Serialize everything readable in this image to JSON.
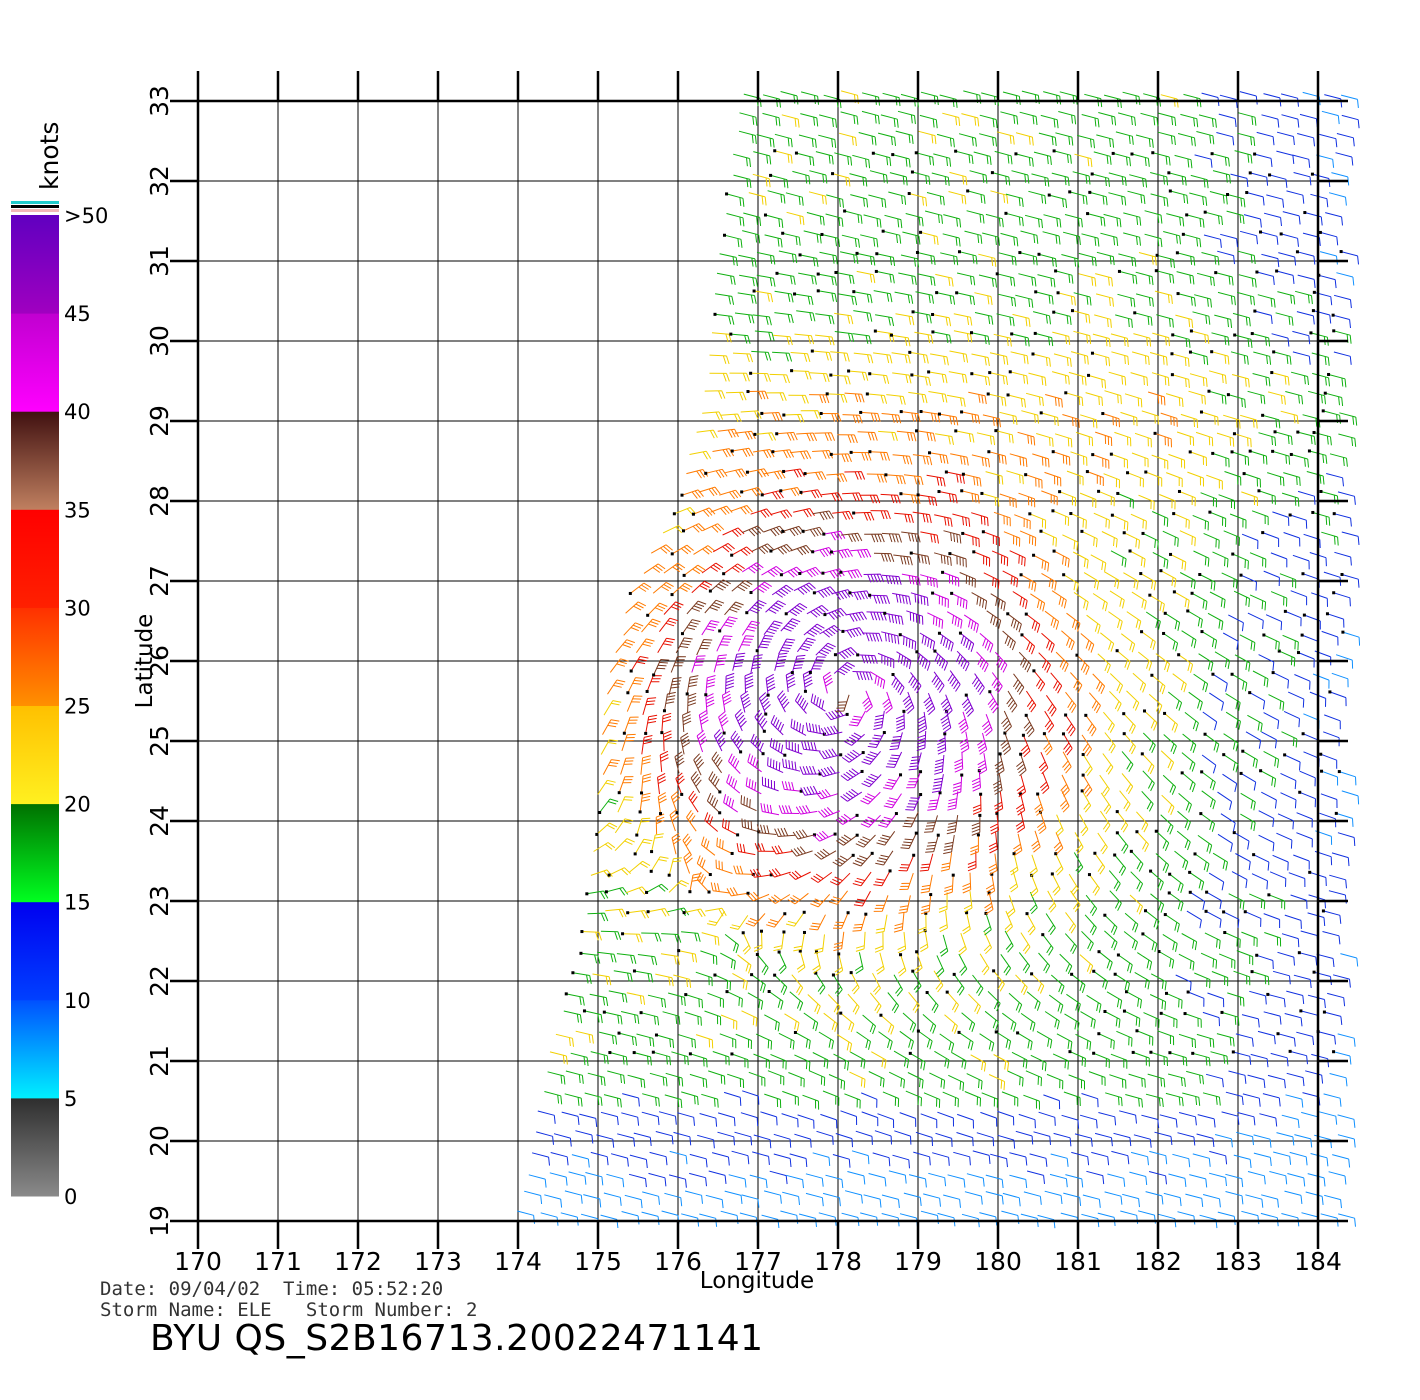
{
  "colorbar": {
    "unit_label": "knots",
    "colors": {
      "0-5": [
        "#8a8a8a",
        "#2e2e2e"
      ],
      "5-10": [
        "#00f0ff",
        "#0050ff"
      ],
      "10-15": [
        "#0040ff",
        "#0000f0"
      ],
      "15-20": [
        "#00ff20",
        "#007000"
      ],
      "20-25": [
        "#fff020",
        "#ffc000"
      ],
      "25-30": [
        "#ff9000",
        "#ff3000"
      ],
      "30-35": [
        "#ff2000",
        "#ff0000"
      ],
      "35-40": [
        "#c08060",
        "#401010"
      ],
      "40-45": [
        "#ff00ff",
        "#c000d0"
      ],
      "45-50": [
        "#a000c0",
        "#6000c0"
      ]
    },
    "top_stripes": [
      "#22cccc",
      "#000000",
      "#f2b8b8"
    ],
    "labels": [
      {
        "value": 0,
        "text": "0"
      },
      {
        "value": 5,
        "text": "5"
      },
      {
        "value": 10,
        "text": "10"
      },
      {
        "value": 15,
        "text": "15"
      },
      {
        "value": 20,
        "text": "20"
      },
      {
        "value": 25,
        "text": "25"
      },
      {
        "value": 30,
        "text": "30"
      },
      {
        "value": 35,
        "text": "35"
      },
      {
        "value": 40,
        "text": "40"
      },
      {
        "value": 45,
        "text": "45"
      },
      {
        "value": 50,
        "text": ">50"
      }
    ]
  },
  "map": {
    "x_axis": {
      "label": "Longitude",
      "range": [
        170,
        184
      ],
      "ticks": [
        170,
        171,
        172,
        173,
        174,
        175,
        176,
        177,
        178,
        179,
        180,
        181,
        182,
        183,
        184
      ]
    },
    "y_axis": {
      "label": "Latitude",
      "range": [
        19,
        33
      ],
      "ticks": [
        19,
        20,
        21,
        22,
        23,
        24,
        25,
        26,
        27,
        28,
        29,
        30,
        31,
        32,
        33
      ]
    },
    "grid": true,
    "wind_field": {
      "description_speed_units": "knots",
      "storm_center": {
        "lon": 178.1,
        "lat": 25.6
      },
      "max_speed_knots": 48,
      "swath_west_edge": [
        {
          "lat": 19.0,
          "lon": 174.0
        },
        {
          "lat": 21.0,
          "lon": 174.4
        },
        {
          "lat": 22.5,
          "lon": 174.8
        },
        {
          "lat": 24.0,
          "lon": 175.0
        },
        {
          "lat": 25.5,
          "lon": 175.1
        },
        {
          "lat": 26.8,
          "lon": 175.4
        },
        {
          "lat": 28.0,
          "lon": 176.0
        },
        {
          "lat": 29.5,
          "lon": 176.4
        },
        {
          "lat": 31.0,
          "lon": 176.5
        },
        {
          "lat": 33.0,
          "lon": 176.8
        }
      ],
      "swath_east_lon": 184.3
    }
  },
  "info": {
    "line1": "Date: 09/04/02  Time: 05:52:20",
    "line2": "Storm Name: ELE   Storm Number: 2",
    "file": "BYU QS_S2B16713.20022471141"
  }
}
